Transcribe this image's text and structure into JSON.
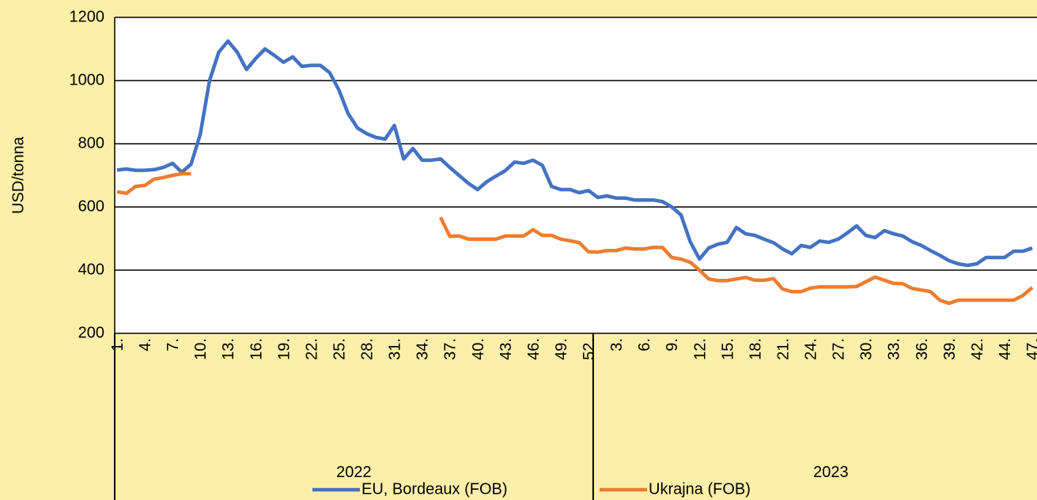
{
  "chart_data": {
    "type": "line",
    "y_label": "USD/tonna",
    "ylim": [
      200,
      1200
    ],
    "yticks": [
      200,
      400,
      600,
      800,
      1000,
      1200
    ],
    "grid": true,
    "legend": "bottom",
    "category_groups": [
      {
        "name": "2022",
        "categories": [
          "1.",
          null,
          null,
          "4.",
          null,
          null,
          "7.",
          null,
          null,
          "10.",
          null,
          null,
          "13.",
          null,
          null,
          "16.",
          null,
          null,
          "19.",
          null,
          null,
          "22.",
          null,
          null,
          "25.",
          null,
          null,
          "28.",
          null,
          null,
          "31.",
          null,
          null,
          "34.",
          null,
          null,
          "37.",
          null,
          null,
          "40.",
          null,
          null,
          "43.",
          null,
          null,
          "46.",
          null,
          null,
          "49.",
          null,
          null,
          "52."
        ]
      },
      {
        "name": "2023",
        "categories": [
          null,
          null,
          "3.",
          null,
          null,
          "6.",
          null,
          null,
          "9.",
          null,
          null,
          "12.",
          null,
          null,
          "15.",
          null,
          null,
          "18.",
          null,
          null,
          "21.",
          null,
          null,
          "24.",
          null,
          null,
          "27.",
          null,
          null,
          "30.",
          null,
          null,
          "33.",
          null,
          null,
          "36.",
          null,
          null,
          "39.",
          null,
          null,
          "42.",
          null,
          null,
          "44.",
          null,
          null,
          "47."
        ]
      }
    ],
    "series": [
      {
        "name": "EU, Bordeaux (FOB)",
        "color": "#4472c4",
        "values": [
          717,
          720,
          716,
          716,
          718,
          725,
          738,
          710,
          735,
          830,
          1000,
          1090,
          1125,
          1090,
          1035,
          1070,
          1100,
          1080,
          1058,
          1075,
          1045,
          1048,
          1048,
          1025,
          970,
          895,
          850,
          832,
          820,
          815,
          858,
          752,
          785,
          748,
          748,
          752,
          725,
          700,
          675,
          655,
          680,
          698,
          715,
          742,
          738,
          748,
          732,
          665,
          655,
          655,
          645,
          652,
          630,
          635,
          628,
          628,
          622,
          622,
          622,
          617,
          600,
          575,
          490,
          435,
          470,
          482,
          488,
          535,
          515,
          510,
          498,
          487,
          467,
          452,
          478,
          472,
          492,
          488,
          498,
          518,
          540,
          510,
          503,
          525,
          515,
          508,
          490,
          478,
          462,
          447,
          430,
          420,
          415,
          420,
          440,
          440,
          440,
          460,
          460,
          470
        ]
      },
      {
        "name": "Ukrajna (FOB)",
        "color": "#ed7d31",
        "values": [
          648,
          643,
          665,
          668,
          688,
          693,
          700,
          705,
          705,
          null,
          null,
          null,
          null,
          null,
          null,
          null,
          null,
          null,
          null,
          null,
          null,
          null,
          null,
          null,
          null,
          null,
          null,
          null,
          null,
          null,
          null,
          null,
          null,
          null,
          null,
          567,
          507,
          508,
          498,
          498,
          498,
          498,
          508,
          508,
          508,
          528,
          510,
          510,
          498,
          493,
          487,
          458,
          457,
          462,
          462,
          470,
          467,
          467,
          472,
          472,
          440,
          435,
          425,
          400,
          372,
          367,
          367,
          372,
          377,
          368,
          368,
          373,
          340,
          332,
          332,
          343,
          347,
          347,
          347,
          347,
          348,
          363,
          378,
          368,
          358,
          357,
          342,
          337,
          332,
          305,
          295,
          305,
          305,
          305,
          305,
          305,
          305,
          305,
          320,
          345
        ]
      }
    ]
  }
}
